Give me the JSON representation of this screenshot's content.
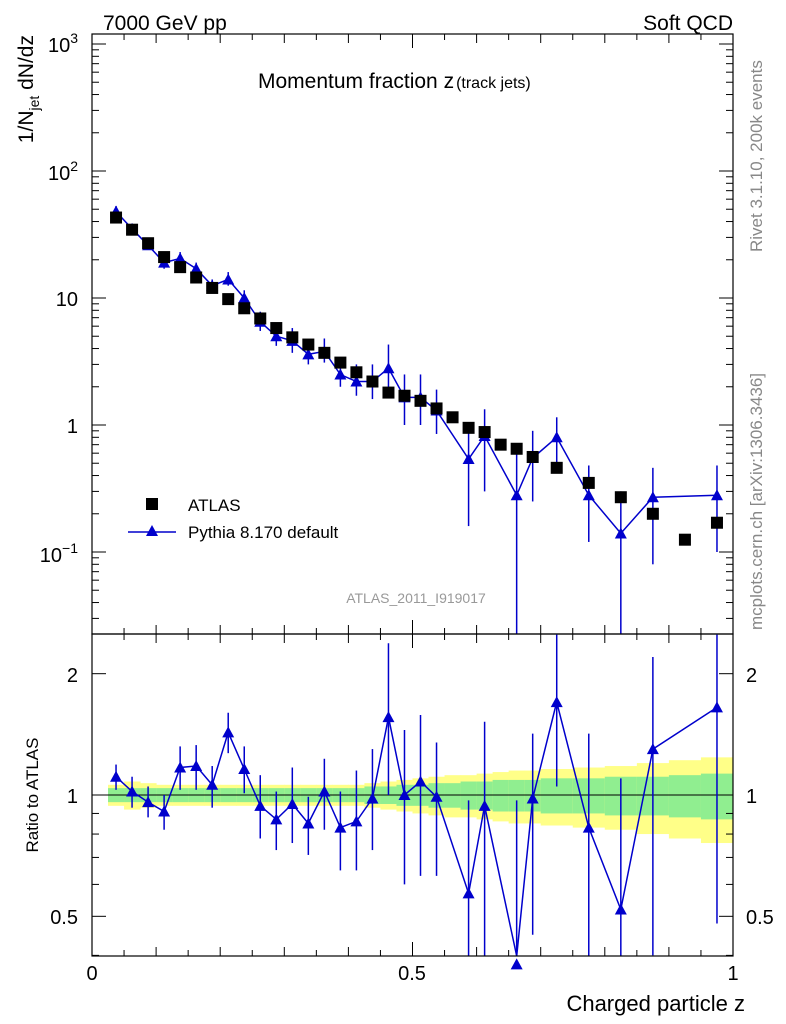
{
  "header": {
    "left": "7000 GeV pp",
    "right": "Soft QCD"
  },
  "side": {
    "rivet": "Rivet 3.1.10,  200k events",
    "mcplots": "mcplots.cern.ch [arXiv:1306.3436]"
  },
  "colors": {
    "mc": "#0000cc",
    "data": "#000000",
    "band_inner": "#90ee90",
    "band_outer": "#ffff88"
  },
  "chart_data": [
    {
      "panel": "main",
      "type": "scatter",
      "title": "Momentum fraction z",
      "title_sub": "(track jets)",
      "ylabel_main": "1/N",
      "ylabel_sub": "jet",
      "ylabel_tail": " dN/dz",
      "yscale": "log",
      "ylim": [
        0.025,
        1200
      ],
      "xlim": [
        0,
        1
      ],
      "ytick_labels": {
        "thousand": "10",
        "thousand_exp": "3",
        "hundred": "10",
        "hundred_exp": "2",
        "ten": "10",
        "one": "1",
        "tenth": "10",
        "tenth_exp": "−1"
      },
      "analysis_label": "ATLAS_2011_I919017",
      "legend": {
        "data": "ATLAS",
        "mc": "Pythia 8.170 default"
      },
      "series": [
        {
          "name": "ATLAS",
          "marker": "square",
          "x": [
            0.0375,
            0.0625,
            0.0875,
            0.1125,
            0.1375,
            0.1625,
            0.1875,
            0.2125,
            0.2375,
            0.2625,
            0.2875,
            0.3125,
            0.3375,
            0.3625,
            0.3875,
            0.4125,
            0.4375,
            0.4625,
            0.4875,
            0.5125,
            0.5375,
            0.5625,
            0.5875,
            0.6125,
            0.6375,
            0.6625,
            0.6875,
            0.725,
            0.775,
            0.825,
            0.875,
            0.925,
            0.975
          ],
          "values": [
            43,
            34.5,
            27,
            21,
            17.5,
            14.5,
            12,
            9.8,
            8.3,
            6.9,
            5.8,
            4.9,
            4.3,
            3.7,
            3.1,
            2.6,
            2.2,
            1.8,
            1.7,
            1.55,
            1.35,
            1.15,
            0.95,
            0.88,
            0.7,
            0.65,
            0.56,
            0.46,
            0.35,
            0.27,
            0.2,
            0.125,
            0.17
          ]
        },
        {
          "name": "Pythia 8.170 default",
          "marker": "triangle",
          "x": [
            0.0375,
            0.0625,
            0.0875,
            0.1125,
            0.1375,
            0.1625,
            0.1875,
            0.2125,
            0.2375,
            0.2625,
            0.2875,
            0.3125,
            0.3375,
            0.3625,
            0.3875,
            0.4125,
            0.4375,
            0.4625,
            0.4875,
            0.5125,
            0.5375,
            0.5875,
            0.6125,
            0.6625,
            0.6875,
            0.725,
            0.775,
            0.825,
            0.875,
            0.975
          ],
          "values": [
            48,
            35,
            26,
            19,
            20.5,
            17,
            12.5,
            14,
            10,
            6.5,
            5,
            4.6,
            3.6,
            3.8,
            2.5,
            2.2,
            2.2,
            2.8,
            1.65,
            1.65,
            1.3,
            0.54,
            0.82,
            0.28,
            0.55,
            0.8,
            0.28,
            0.14,
            0.27,
            0.28
          ],
          "err_low": [
            44,
            32,
            24,
            17,
            18,
            15,
            11,
            12.5,
            8.5,
            5.5,
            4.2,
            3.7,
            3.0,
            3.1,
            2.0,
            1.7,
            1.6,
            1.8,
            1.0,
            1.0,
            0.85,
            0.16,
            0.3,
            0.01,
            0.25,
            0.5,
            0.12,
            0.01,
            0.08,
            0.1
          ],
          "err_high": [
            53,
            38,
            28.5,
            21,
            23,
            19,
            14,
            16,
            11.5,
            7.8,
            6.0,
            5.8,
            4.4,
            4.8,
            3.2,
            3.0,
            3.0,
            4.3,
            2.5,
            2.5,
            1.9,
            0.92,
            1.33,
            0.68,
            0.9,
            1.15,
            0.48,
            0.3,
            0.46,
            0.48
          ]
        }
      ]
    },
    {
      "panel": "ratio",
      "type": "scatter",
      "ylabel": "Ratio to ATLAS",
      "xlabel": "Charged particle z",
      "ylim": [
        0.35,
        2.3
      ],
      "yscale": "log",
      "xlim": [
        0,
        1
      ],
      "ytick_labels": {
        "half": "0.5",
        "one": "1",
        "two": "2"
      },
      "xtick_labels": {
        "zero": "0",
        "half": "0.5",
        "one": "1"
      },
      "bins": [
        0.025,
        0.05,
        0.075,
        0.1,
        0.125,
        0.15,
        0.175,
        0.2,
        0.225,
        0.25,
        0.275,
        0.3,
        0.325,
        0.35,
        0.375,
        0.4,
        0.425,
        0.45,
        0.475,
        0.5,
        0.525,
        0.55,
        0.575,
        0.6,
        0.625,
        0.65,
        0.675,
        0.7,
        0.75,
        0.8,
        0.85,
        0.9,
        0.95,
        1.0
      ],
      "band_inner_halfwidth": [
        0.04,
        0.04,
        0.04,
        0.04,
        0.04,
        0.04,
        0.04,
        0.04,
        0.04,
        0.04,
        0.04,
        0.04,
        0.04,
        0.04,
        0.04,
        0.04,
        0.05,
        0.05,
        0.06,
        0.06,
        0.07,
        0.07,
        0.08,
        0.08,
        0.09,
        0.09,
        0.09,
        0.1,
        0.1,
        0.11,
        0.11,
        0.12,
        0.13
      ],
      "band_outer_halfwidth": [
        0.06,
        0.08,
        0.07,
        0.06,
        0.06,
        0.06,
        0.06,
        0.06,
        0.06,
        0.06,
        0.06,
        0.06,
        0.06,
        0.06,
        0.06,
        0.06,
        0.07,
        0.08,
        0.09,
        0.1,
        0.11,
        0.12,
        0.12,
        0.13,
        0.14,
        0.15,
        0.15,
        0.16,
        0.17,
        0.18,
        0.2,
        0.22,
        0.24
      ],
      "series": [
        {
          "name": "Pythia 8.170 default / ATLAS",
          "x": [
            0.0375,
            0.0625,
            0.0875,
            0.1125,
            0.1375,
            0.1625,
            0.1875,
            0.2125,
            0.2375,
            0.2625,
            0.2875,
            0.3125,
            0.3375,
            0.3625,
            0.3875,
            0.4125,
            0.4375,
            0.4625,
            0.4875,
            0.5125,
            0.5375,
            0.5875,
            0.6125,
            0.6625,
            0.6875,
            0.725,
            0.775,
            0.825,
            0.875,
            0.975
          ],
          "values": [
            1.11,
            1.02,
            0.96,
            0.91,
            1.17,
            1.18,
            1.06,
            1.43,
            1.16,
            0.94,
            0.87,
            0.95,
            0.85,
            1.02,
            0.83,
            0.86,
            0.98,
            1.56,
            1.0,
            1.08,
            0.99,
            0.57,
            0.94,
            0.38,
            0.98,
            1.7,
            0.83,
            0.52,
            1.3,
            1.65
          ],
          "err_low": [
            1.03,
            0.93,
            0.88,
            0.82,
            1.03,
            1.03,
            0.93,
            1.27,
            1.01,
            0.78,
            0.73,
            0.76,
            0.71,
            0.82,
            0.65,
            0.65,
            0.73,
            1.0,
            0.6,
            0.63,
            0.63,
            0.17,
            0.34,
            0.01,
            0.45,
            1.05,
            0.34,
            0.01,
            0.4,
            0.48
          ],
          "err_high": [
            1.19,
            1.11,
            1.05,
            1.0,
            1.32,
            1.33,
            1.18,
            1.6,
            1.32,
            1.12,
            1.02,
            1.17,
            0.99,
            1.23,
            1.02,
            1.15,
            1.3,
            2.38,
            1.45,
            1.58,
            1.35,
            0.97,
            1.52,
            0.97,
            1.42,
            2.5,
            1.42,
            1.1,
            2.2,
            2.5
          ]
        }
      ]
    }
  ]
}
